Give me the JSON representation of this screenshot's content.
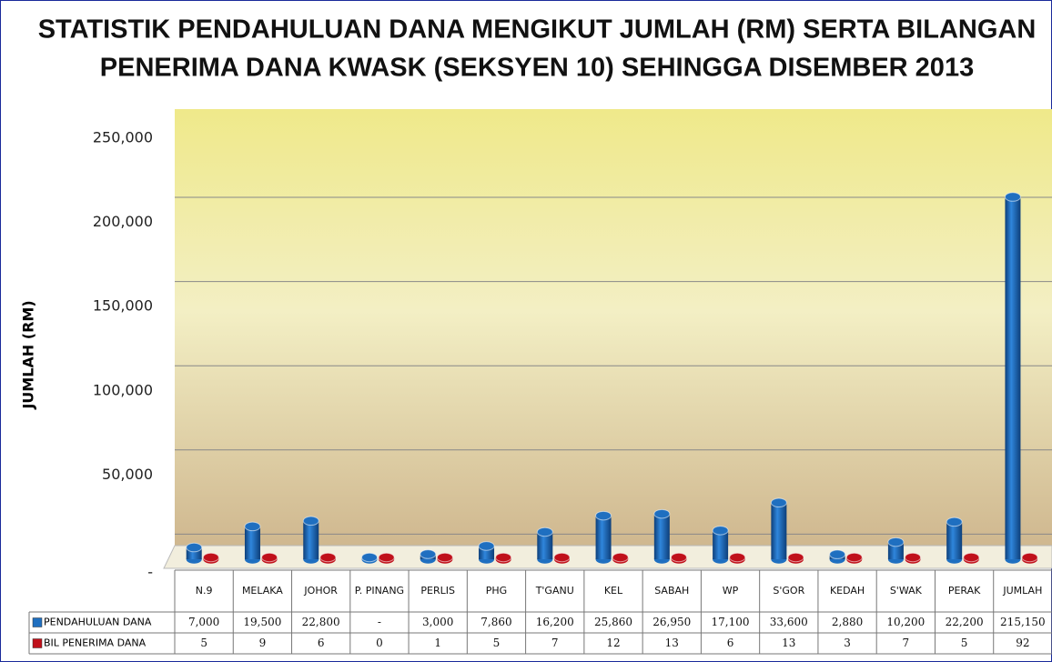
{
  "chart_data": {
    "type": "bar",
    "title": [
      "STATISTIK PENDAHULUAN DANA MENGIKUT JUMLAH (RM) SERTA BILANGAN",
      "PENERIMA DANA KWASK (SEKSYEN 10) SEHINGGA DISEMBER 2013"
    ],
    "y_label": "JUMLAH (RM)",
    "categories": [
      "N.9",
      "MELAKA",
      "JOHOR",
      "P. PINANG",
      "PERLIS",
      "PHG",
      "T'GANU",
      "KEL",
      "SABAH",
      "WP",
      "S'GOR",
      "KEDAH",
      "S'WAK",
      "PERAK",
      "JUMLAH"
    ],
    "series": [
      {
        "name": "PENDAHULUAN DANA",
        "color": "#1f6fc0",
        "values": [
          7000,
          19500,
          22800,
          0,
          3000,
          7860,
          16200,
          25860,
          26950,
          17100,
          33600,
          2880,
          10200,
          22200,
          215150
        ],
        "value_labels": [
          "7,000",
          "19,500",
          "22,800",
          "-",
          "3,000",
          "7,860",
          "16,200",
          "25,860",
          "26,950",
          "17,100",
          "33,600",
          "2,880",
          "10,200",
          "22,200",
          "215,150"
        ]
      },
      {
        "name": "BIL PENERIMA DANA",
        "color": "#c0101a",
        "values": [
          5,
          9,
          6,
          0,
          1,
          5,
          7,
          12,
          13,
          6,
          13,
          3,
          7,
          5,
          92
        ]
      }
    ],
    "ylim": [
      0,
      250000
    ],
    "yticks": [
      {
        "value": 0,
        "label": "-"
      },
      {
        "value": 50000,
        "label": "50,000"
      },
      {
        "value": 100000,
        "label": "100,000"
      },
      {
        "value": 150000,
        "label": "150,000"
      },
      {
        "value": 200000,
        "label": "200,000"
      },
      {
        "value": 250000,
        "label": "250,000"
      }
    ],
    "grid": true
  }
}
